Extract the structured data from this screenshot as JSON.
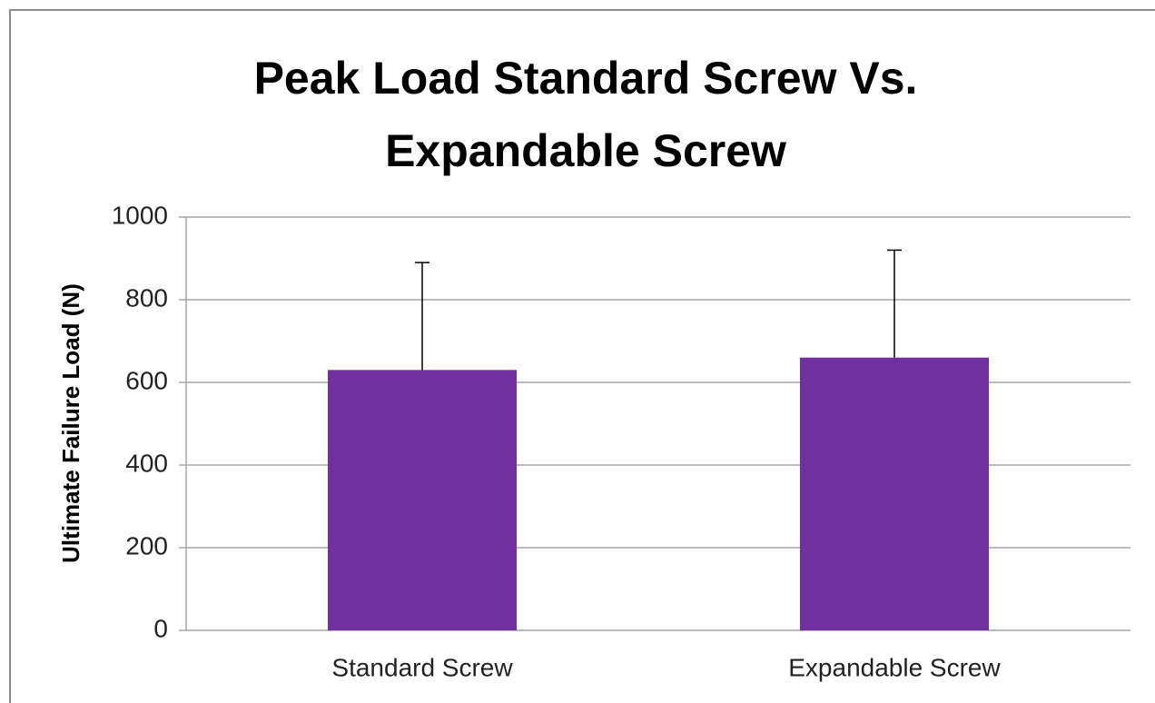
{
  "chart_data": {
    "type": "bar",
    "title": "Peak Load Standard Screw Vs. Expandable Screw",
    "y_label": "Ultimate Failure Load (N)",
    "categories": [
      "Standard Screw",
      "Expandable Screw"
    ],
    "values": [
      630,
      660
    ],
    "errors": [
      260,
      260
    ],
    "color": "#7030a0",
    "ylim": [
      0,
      1000
    ],
    "yticks": [
      0,
      200,
      400,
      600,
      800,
      1000
    ],
    "grid": true
  }
}
